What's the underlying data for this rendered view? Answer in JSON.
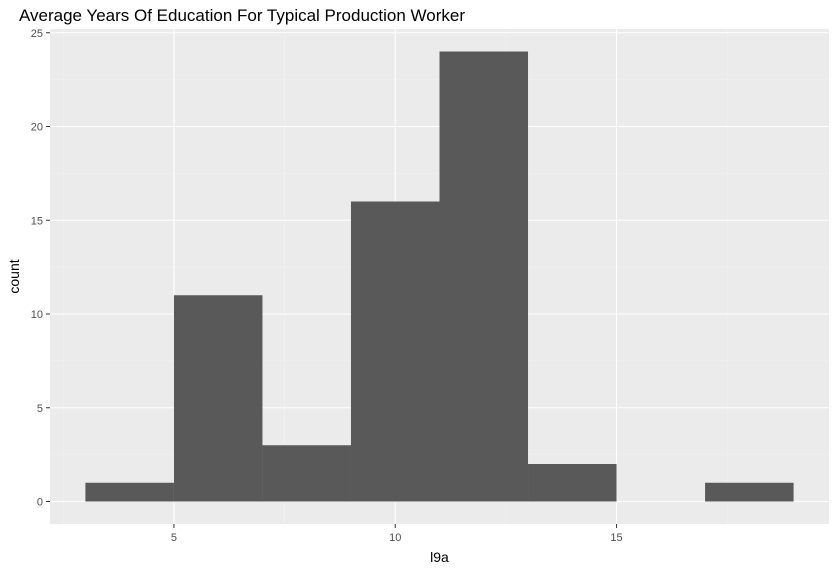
{
  "chart_data": {
    "type": "bar",
    "title": "Average Years Of Education For Typical Production Worker",
    "xlabel": "l9a",
    "ylabel": "count",
    "bins": [
      {
        "x0": 3,
        "x1": 5,
        "count": 1
      },
      {
        "x0": 5,
        "x1": 7,
        "count": 11
      },
      {
        "x0": 7,
        "x1": 9,
        "count": 3
      },
      {
        "x0": 9,
        "x1": 11,
        "count": 16
      },
      {
        "x0": 11,
        "x1": 13,
        "count": 24
      },
      {
        "x0": 13,
        "x1": 15,
        "count": 2
      },
      {
        "x0": 15,
        "x1": 17,
        "count": 0
      },
      {
        "x0": 17,
        "x1": 19,
        "count": 1
      }
    ],
    "xlim": [
      2.2,
      19.8
    ],
    "ylim": [
      -1.2,
      25.2
    ],
    "xticks": [
      5,
      10,
      15
    ],
    "xtick_labels": [
      "5",
      "10",
      "15"
    ],
    "yticks": [
      0,
      5,
      10,
      15,
      20,
      25
    ],
    "ytick_labels": [
      "0",
      "5",
      "10",
      "15",
      "20",
      "25"
    ],
    "grid": true,
    "colors": {
      "bar": "#595959",
      "panel": "#ebebeb",
      "grid_major": "#ffffff",
      "grid_minor": "#f2f2f2"
    }
  }
}
